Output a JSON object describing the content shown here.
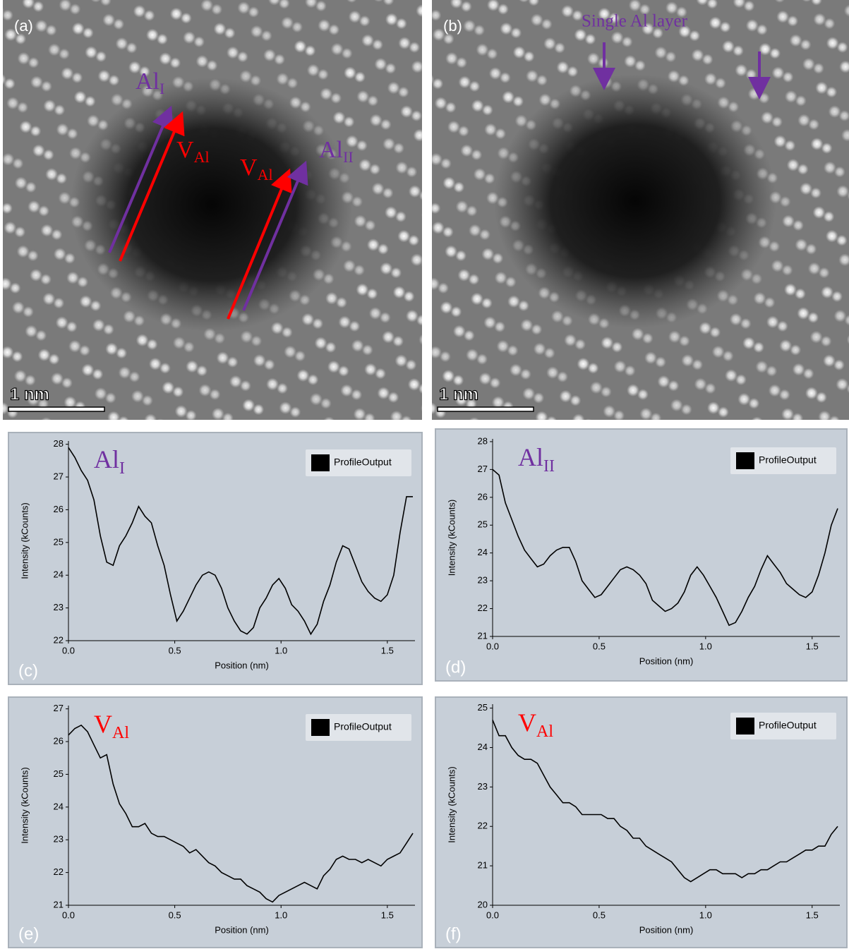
{
  "images": [
    {
      "label": "(a)",
      "scale_bar": "1 nm",
      "annotations": [
        {
          "text": "Al",
          "sub": "I"
        },
        {
          "text": "V",
          "sub": "Al"
        },
        {
          "text": "V",
          "sub": "Al"
        },
        {
          "text": "Al",
          "sub": "II"
        }
      ]
    },
    {
      "label": "(b)",
      "scale_bar": "1 nm",
      "annotations": [
        {
          "text": "Single Al layer"
        }
      ]
    }
  ],
  "chart_data": [
    {
      "type": "line",
      "panel_label": "(c)",
      "annotation": {
        "text": "Al",
        "sub": "I",
        "color": "#7030a0"
      },
      "x_label": "Position (nm)",
      "y_label": "Intensity (kCounts)",
      "legend": "upper right",
      "x": [
        0,
        0.03,
        0.06,
        0.09,
        0.12,
        0.15,
        0.18,
        0.21,
        0.24,
        0.27,
        0.3,
        0.33,
        0.36,
        0.39,
        0.42,
        0.45,
        0.48,
        0.51,
        0.54,
        0.57,
        0.6,
        0.63,
        0.66,
        0.69,
        0.72,
        0.75,
        0.78,
        0.81,
        0.84,
        0.87,
        0.9,
        0.93,
        0.96,
        0.99,
        1.02,
        1.05,
        1.08,
        1.11,
        1.14,
        1.17,
        1.2,
        1.23,
        1.26,
        1.29,
        1.32,
        1.35,
        1.38,
        1.41,
        1.44,
        1.47,
        1.5,
        1.53,
        1.56,
        1.59,
        1.62
      ],
      "series": [
        {
          "name": "ProfileOutput",
          "color": "#000000",
          "values": [
            27.9,
            27.6,
            27.2,
            26.9,
            26.3,
            25.2,
            24.4,
            24.3,
            24.9,
            25.2,
            25.6,
            26.1,
            25.8,
            25.6,
            24.9,
            24.3,
            23.4,
            22.6,
            22.9,
            23.3,
            23.7,
            24.0,
            24.1,
            24.0,
            23.6,
            23.0,
            22.6,
            22.3,
            22.2,
            22.4,
            23.0,
            23.3,
            23.7,
            23.9,
            23.6,
            23.1,
            22.9,
            22.6,
            22.2,
            22.5,
            23.2,
            23.7,
            24.4,
            24.9,
            24.8,
            24.3,
            23.8,
            23.5,
            23.3,
            23.2,
            23.4,
            24.0,
            25.3,
            26.4,
            26.4
          ]
        }
      ],
      "xlim": [
        0,
        1.63
      ],
      "xticks": [
        {
          "value": 0,
          "label": "0.0"
        },
        0.5,
        {
          "value": 1,
          "label": "1.0"
        },
        1.5
      ],
      "ylim": [
        22,
        28.1
      ],
      "yticks": [
        22,
        23,
        24,
        25,
        26,
        27,
        28
      ]
    },
    {
      "type": "line",
      "panel_label": "(d)",
      "annotation": {
        "text": "Al",
        "sub": "II",
        "color": "#7030a0"
      },
      "x_label": "Position (nm)",
      "y_label": "Intensity (kCounts)",
      "legend": "upper right",
      "x": [
        0,
        0.03,
        0.06,
        0.09,
        0.12,
        0.15,
        0.18,
        0.21,
        0.24,
        0.27,
        0.3,
        0.33,
        0.36,
        0.39,
        0.42,
        0.45,
        0.48,
        0.51,
        0.54,
        0.57,
        0.6,
        0.63,
        0.66,
        0.69,
        0.72,
        0.75,
        0.78,
        0.81,
        0.84,
        0.87,
        0.9,
        0.93,
        0.96,
        0.99,
        1.02,
        1.05,
        1.08,
        1.11,
        1.14,
        1.17,
        1.2,
        1.23,
        1.26,
        1.29,
        1.32,
        1.35,
        1.38,
        1.41,
        1.44,
        1.47,
        1.5,
        1.53,
        1.56,
        1.59,
        1.62
      ],
      "series": [
        {
          "name": "ProfileOutput",
          "color": "#000000",
          "values": [
            27.0,
            26.8,
            25.8,
            25.2,
            24.6,
            24.1,
            23.8,
            23.5,
            23.6,
            23.9,
            24.1,
            24.2,
            24.2,
            23.7,
            23.0,
            22.7,
            22.4,
            22.5,
            22.8,
            23.1,
            23.4,
            23.5,
            23.4,
            23.2,
            22.9,
            22.3,
            22.1,
            21.9,
            22.0,
            22.2,
            22.6,
            23.2,
            23.5,
            23.2,
            22.8,
            22.4,
            21.9,
            21.4,
            21.5,
            21.9,
            22.4,
            22.8,
            23.4,
            23.9,
            23.6,
            23.3,
            22.9,
            22.7,
            22.5,
            22.4,
            22.6,
            23.2,
            24.0,
            25.0,
            25.6
          ]
        }
      ],
      "xlim": [
        0,
        1.63
      ],
      "xticks": [
        {
          "value": 0,
          "label": "0.0"
        },
        0.5,
        {
          "value": 1,
          "label": "1.0"
        },
        1.5
      ],
      "ylim": [
        21,
        28.1
      ],
      "yticks": [
        21,
        22,
        23,
        24,
        25,
        26,
        27,
        28
      ]
    },
    {
      "type": "line",
      "panel_label": "(e)",
      "annotation": {
        "text": "V",
        "sub": "Al",
        "color": "#ff0000"
      },
      "x_label": "Position (nm)",
      "y_label": "Intensity (kCounts)",
      "legend": "upper right",
      "x": [
        0,
        0.03,
        0.06,
        0.09,
        0.12,
        0.15,
        0.18,
        0.21,
        0.24,
        0.27,
        0.3,
        0.33,
        0.36,
        0.39,
        0.42,
        0.45,
        0.48,
        0.51,
        0.54,
        0.57,
        0.6,
        0.63,
        0.66,
        0.69,
        0.72,
        0.75,
        0.78,
        0.81,
        0.84,
        0.87,
        0.9,
        0.93,
        0.96,
        0.99,
        1.02,
        1.05,
        1.08,
        1.11,
        1.14,
        1.17,
        1.2,
        1.23,
        1.26,
        1.29,
        1.32,
        1.35,
        1.38,
        1.41,
        1.44,
        1.47,
        1.5,
        1.53,
        1.56,
        1.59,
        1.62
      ],
      "series": [
        {
          "name": "ProfileOutput",
          "color": "#000000",
          "values": [
            26.2,
            26.4,
            26.5,
            26.3,
            25.9,
            25.5,
            25.6,
            24.7,
            24.1,
            23.8,
            23.4,
            23.4,
            23.5,
            23.2,
            23.1,
            23.1,
            23.0,
            22.9,
            22.8,
            22.6,
            22.7,
            22.5,
            22.3,
            22.2,
            22.0,
            21.9,
            21.8,
            21.8,
            21.6,
            21.5,
            21.4,
            21.2,
            21.1,
            21.3,
            21.4,
            21.5,
            21.6,
            21.7,
            21.6,
            21.5,
            21.9,
            22.1,
            22.4,
            22.5,
            22.4,
            22.4,
            22.3,
            22.4,
            22.3,
            22.2,
            22.4,
            22.5,
            22.6,
            22.9,
            23.2
          ]
        }
      ],
      "xlim": [
        0,
        1.63
      ],
      "xticks": [
        {
          "value": 0,
          "label": "0.0"
        },
        0.5,
        {
          "value": 1,
          "label": "1.0"
        },
        1.5
      ],
      "ylim": [
        21,
        27.1
      ],
      "yticks": [
        21,
        22,
        23,
        24,
        25,
        26,
        27
      ]
    },
    {
      "type": "line",
      "panel_label": "(f)",
      "annotation": {
        "text": "V",
        "sub": "Al",
        "color": "#ff0000"
      },
      "x_label": "Position (nm)",
      "y_label": "Intensity (kCounts)",
      "legend": "upper right",
      "x": [
        0,
        0.03,
        0.06,
        0.09,
        0.12,
        0.15,
        0.18,
        0.21,
        0.24,
        0.27,
        0.3,
        0.33,
        0.36,
        0.39,
        0.42,
        0.45,
        0.48,
        0.51,
        0.54,
        0.57,
        0.6,
        0.63,
        0.66,
        0.69,
        0.72,
        0.75,
        0.78,
        0.81,
        0.84,
        0.87,
        0.9,
        0.93,
        0.96,
        0.99,
        1.02,
        1.05,
        1.08,
        1.11,
        1.14,
        1.17,
        1.2,
        1.23,
        1.26,
        1.29,
        1.32,
        1.35,
        1.38,
        1.41,
        1.44,
        1.47,
        1.5,
        1.53,
        1.56,
        1.59,
        1.62
      ],
      "series": [
        {
          "name": "ProfileOutput",
          "color": "#000000",
          "values": [
            24.7,
            24.3,
            24.3,
            24.0,
            23.8,
            23.7,
            23.7,
            23.6,
            23.3,
            23.0,
            22.8,
            22.6,
            22.6,
            22.5,
            22.3,
            22.3,
            22.3,
            22.3,
            22.2,
            22.2,
            22.0,
            21.9,
            21.7,
            21.7,
            21.5,
            21.4,
            21.3,
            21.2,
            21.1,
            20.9,
            20.7,
            20.6,
            20.7,
            20.8,
            20.9,
            20.9,
            20.8,
            20.8,
            20.8,
            20.7,
            20.8,
            20.8,
            20.9,
            20.9,
            21.0,
            21.1,
            21.1,
            21.2,
            21.3,
            21.4,
            21.4,
            21.5,
            21.5,
            21.8,
            22.0
          ]
        }
      ],
      "xlim": [
        0,
        1.63
      ],
      "xticks": [
        {
          "value": 0,
          "label": "0.0"
        },
        0.5,
        {
          "value": 1,
          "label": "1.0"
        },
        1.5
      ],
      "ylim": [
        20,
        25.1
      ],
      "yticks": [
        20,
        21,
        22,
        23,
        24,
        25
      ]
    }
  ]
}
